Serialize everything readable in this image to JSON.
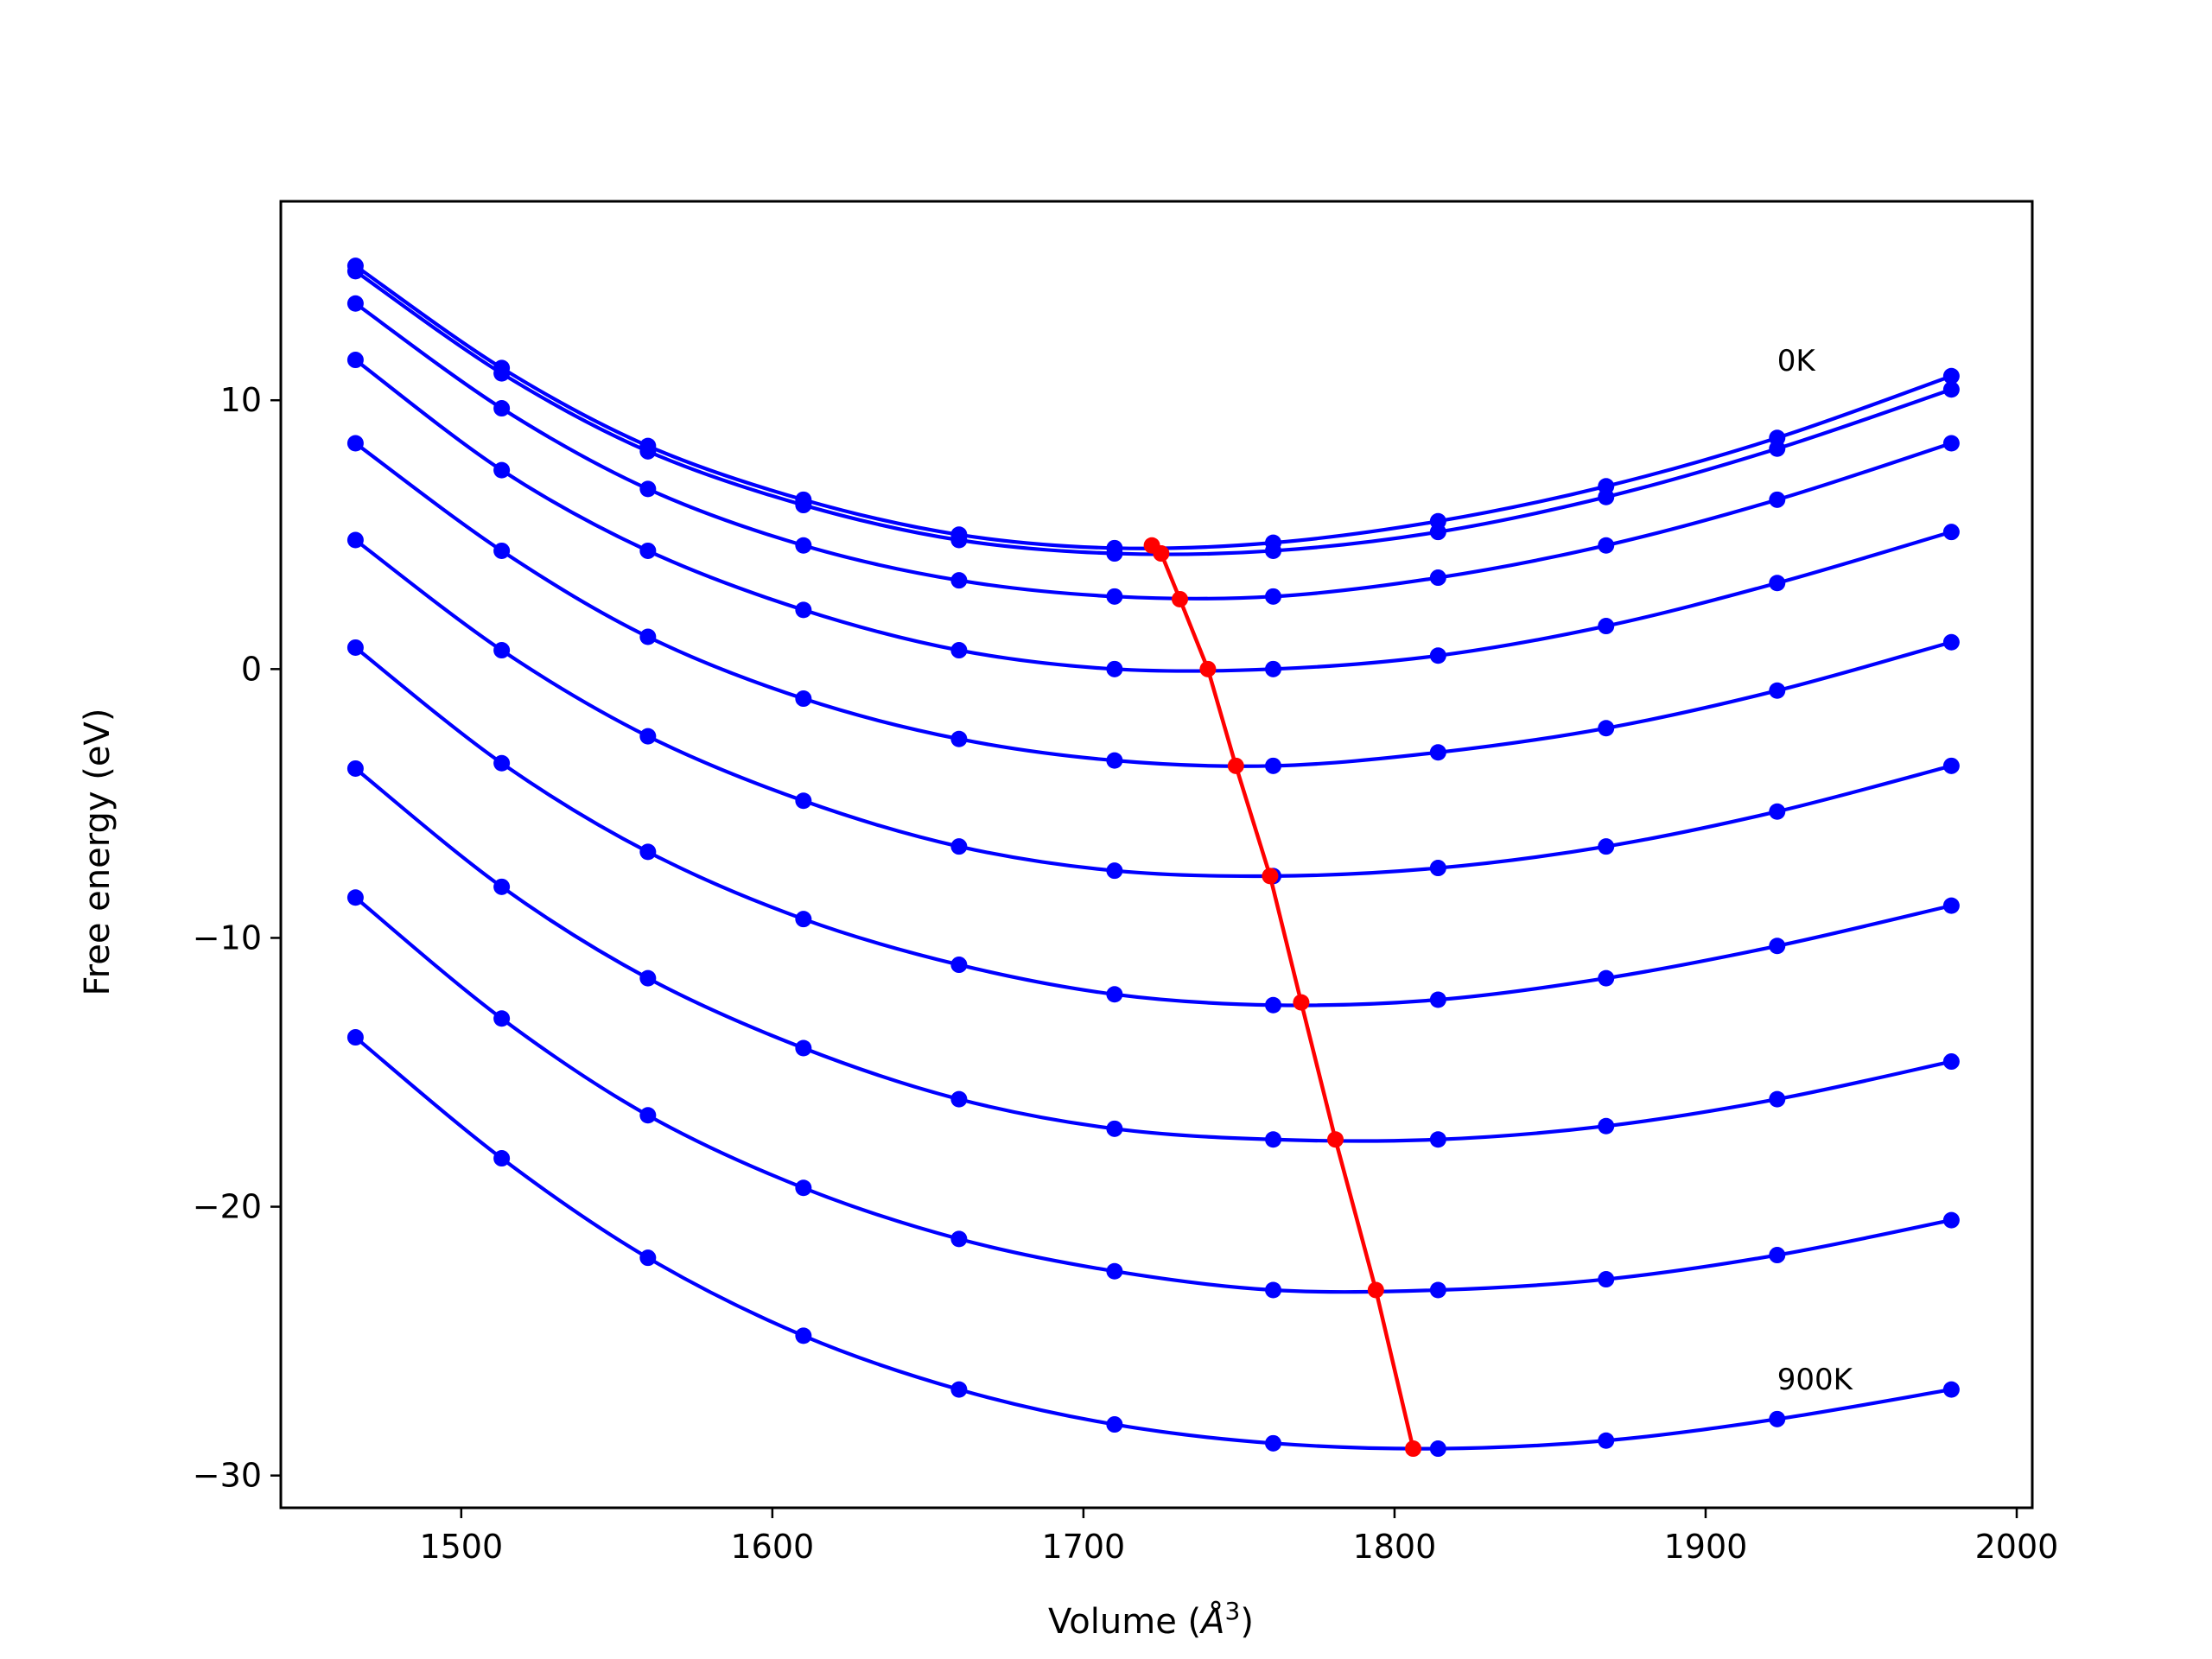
{
  "chart_data": {
    "type": "line",
    "title": "",
    "xlabel": "Volume",
    "xlabel_unit": "Å",
    "xlabel_unit_exp": "3",
    "ylabel": "Free energy (eV)",
    "xlim": [
      1442,
      2005
    ],
    "ylim": [
      -31.2,
      17.4
    ],
    "xticks": [
      1500,
      1600,
      1700,
      1800,
      1900,
      2000
    ],
    "yticks": [
      10,
      0,
      -10,
      -20,
      -30
    ],
    "xtick_labels": [
      "1500",
      "1600",
      "1700",
      "1800",
      "1900",
      "2000"
    ],
    "ytick_labels": [
      "10",
      "0",
      "−10",
      "−20",
      "−30"
    ],
    "grid": false,
    "annotations": [
      {
        "text": "0K",
        "x": 1923,
        "y": 11.1
      },
      {
        "text": "900K",
        "x": 1923,
        "y": -26.8
      }
    ],
    "colors": {
      "curves": "#0000ff",
      "minimum_path": "#ff0000",
      "axes": "#000000"
    },
    "x": [
      1466,
      1513,
      1560,
      1610,
      1660,
      1710,
      1761,
      1814,
      1868,
      1923,
      1979
    ],
    "series": [
      {
        "values": [
          15.0,
          11.2,
          8.3,
          6.3,
          5.0,
          4.5,
          4.7,
          5.5,
          6.8,
          8.6,
          10.9
        ]
      },
      {
        "values": [
          14.8,
          11.0,
          8.1,
          6.1,
          4.8,
          4.3,
          4.4,
          5.1,
          6.4,
          8.2,
          10.4
        ]
      },
      {
        "values": [
          13.6,
          9.7,
          6.7,
          4.6,
          3.3,
          2.7,
          2.7,
          3.4,
          4.6,
          6.3,
          8.4
        ]
      },
      {
        "values": [
          11.5,
          7.4,
          4.4,
          2.2,
          0.7,
          0.0,
          0.0,
          0.5,
          1.6,
          3.2,
          5.1
        ]
      },
      {
        "values": [
          8.4,
          4.4,
          1.2,
          -1.1,
          -2.6,
          -3.4,
          -3.6,
          -3.1,
          -2.2,
          -0.8,
          1.0
        ]
      },
      {
        "values": [
          4.8,
          0.7,
          -2.5,
          -4.9,
          -6.6,
          -7.5,
          -7.7,
          -7.4,
          -6.6,
          -5.3,
          -3.6
        ]
      },
      {
        "values": [
          0.8,
          -3.5,
          -6.8,
          -9.3,
          -11.0,
          -12.1,
          -12.5,
          -12.3,
          -11.5,
          -10.3,
          -8.8
        ]
      },
      {
        "values": [
          -3.7,
          -8.1,
          -11.5,
          -14.1,
          -16.0,
          -17.1,
          -17.5,
          -17.5,
          -17.0,
          -16.0,
          -14.6
        ]
      },
      {
        "values": [
          -8.5,
          -13.0,
          -16.6,
          -19.3,
          -21.2,
          -22.4,
          -23.1,
          -23.1,
          -22.7,
          -21.8,
          -20.5
        ]
      },
      {
        "values": [
          -13.7,
          -18.2,
          -21.9,
          -24.8,
          -26.8,
          -28.1,
          -28.8,
          -29.0,
          -28.7,
          -27.9,
          -26.8
        ]
      }
    ],
    "minimum_path": {
      "x": [
        1722,
        1725,
        1731,
        1740,
        1749,
        1760,
        1770,
        1781,
        1794,
        1806
      ],
      "y": [
        4.6,
        4.3,
        2.6,
        0.0,
        -3.6,
        -7.7,
        -12.4,
        -17.5,
        -23.1,
        -29.0
      ]
    }
  }
}
